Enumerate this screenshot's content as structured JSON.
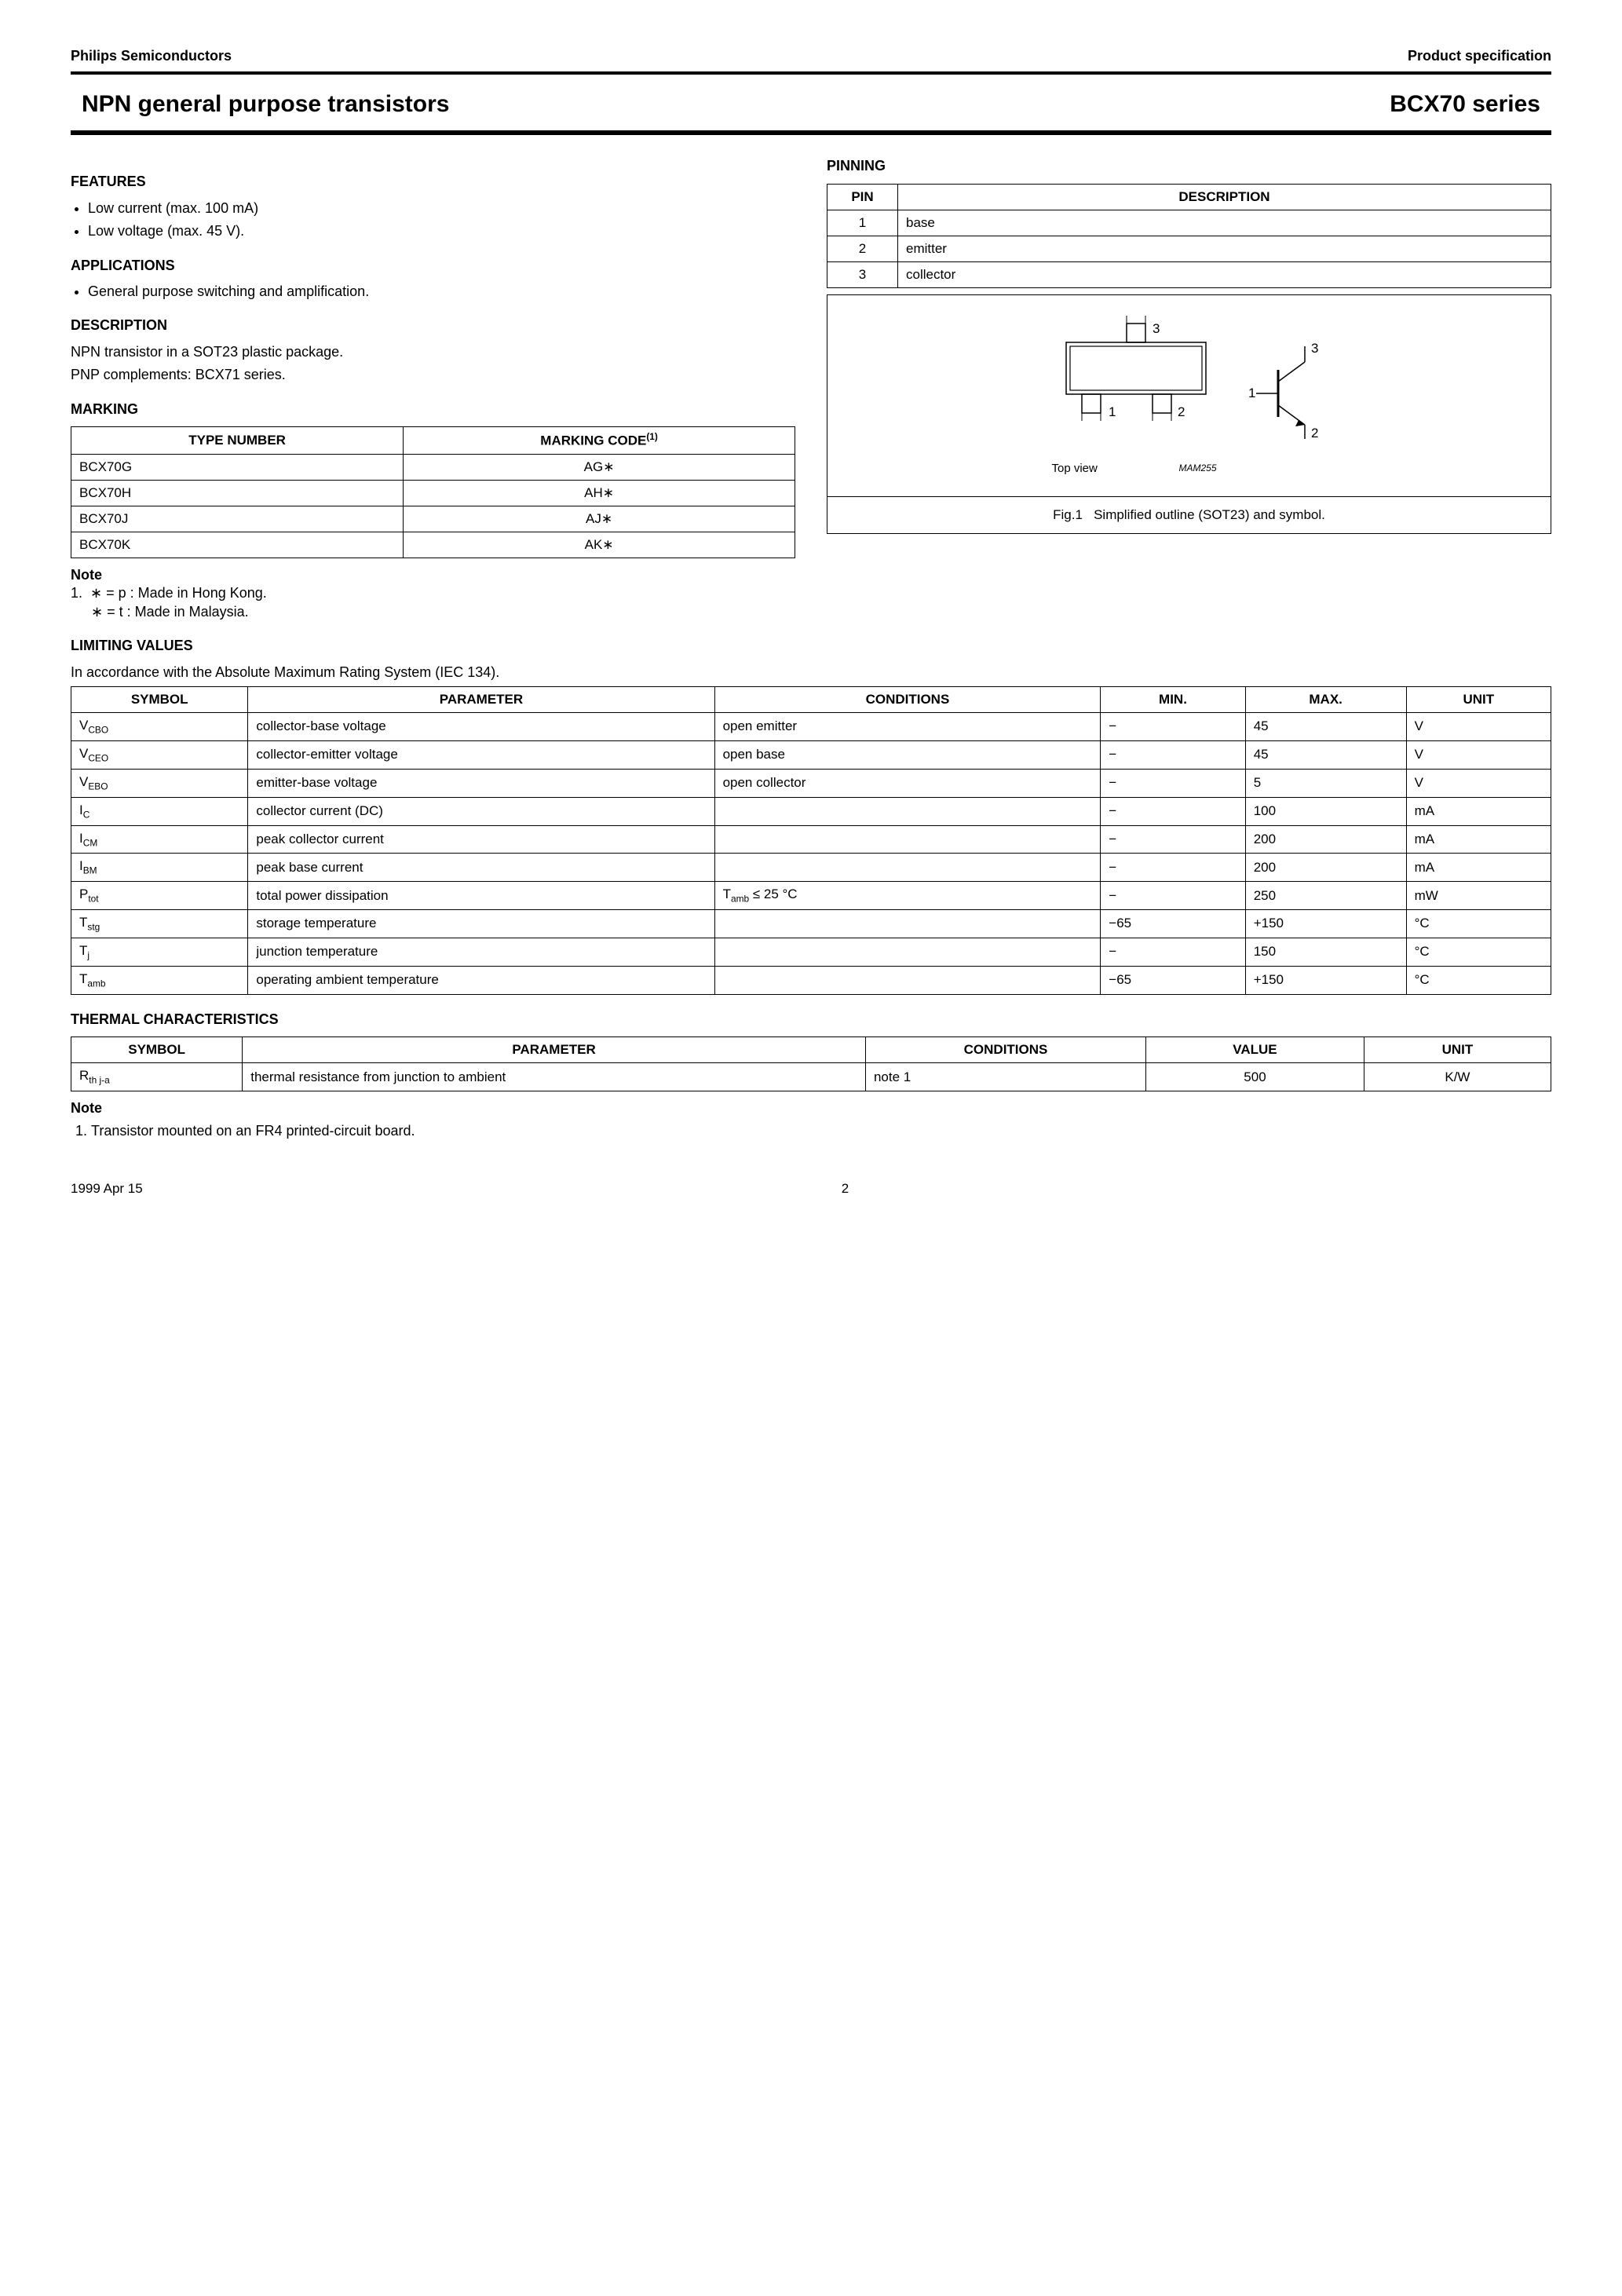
{
  "header": {
    "left": "Philips Semiconductors",
    "right": "Product specification"
  },
  "title": {
    "left": "NPN general purpose transistors",
    "right": "BCX70 series"
  },
  "features": {
    "heading": "FEATURES",
    "items": [
      "Low current (max. 100 mA)",
      "Low voltage (max. 45 V)."
    ]
  },
  "applications": {
    "heading": "APPLICATIONS",
    "items": [
      "General purpose switching and amplification."
    ]
  },
  "description": {
    "heading": "DESCRIPTION",
    "line1": "NPN transistor in a SOT23 plastic package.",
    "line2": "PNP complements: BCX71 series."
  },
  "marking": {
    "heading": "MARKING",
    "columns": [
      "TYPE NUMBER",
      "MARKING CODE"
    ],
    "col2_sup": "(1)",
    "rows": [
      [
        "BCX70G",
        "AG∗"
      ],
      [
        "BCX70H",
        "AH∗"
      ],
      [
        "BCX70J",
        "AJ∗"
      ],
      [
        "BCX70K",
        "AK∗"
      ]
    ],
    "note_head": "Note",
    "note_num": "1.",
    "note_a": "∗ = p : Made in Hong Kong.",
    "note_b": "∗ = t : Made in Malaysia."
  },
  "pinning": {
    "heading": "PINNING",
    "columns": [
      "PIN",
      "DESCRIPTION"
    ],
    "rows": [
      [
        "1",
        "base"
      ],
      [
        "2",
        "emitter"
      ],
      [
        "3",
        "collector"
      ]
    ]
  },
  "figure": {
    "pins": {
      "p1": "1",
      "p2": "2",
      "p3": "3"
    },
    "sym": {
      "t1": "1",
      "t2": "2",
      "t3": "3"
    },
    "top_view": "Top view",
    "code": "MAM255",
    "caption_prefix": "Fig.1",
    "caption": "Simplified outline (SOT23) and symbol."
  },
  "limiting": {
    "heading": "LIMITING VALUES",
    "intro": "In accordance with the Absolute Maximum Rating System (IEC 134).",
    "columns": [
      "SYMBOL",
      "PARAMETER",
      "CONDITIONS",
      "MIN.",
      "MAX.",
      "UNIT"
    ],
    "rows": [
      {
        "sym": "V",
        "sub": "CBO",
        "param": "collector-base voltage",
        "cond": "open emitter",
        "min": "−",
        "max": "45",
        "unit": "V"
      },
      {
        "sym": "V",
        "sub": "CEO",
        "param": "collector-emitter voltage",
        "cond": "open base",
        "min": "−",
        "max": "45",
        "unit": "V"
      },
      {
        "sym": "V",
        "sub": "EBO",
        "param": "emitter-base voltage",
        "cond": "open collector",
        "min": "−",
        "max": "5",
        "unit": "V"
      },
      {
        "sym": "I",
        "sub": "C",
        "param": "collector current (DC)",
        "cond": "",
        "min": "−",
        "max": "100",
        "unit": "mA"
      },
      {
        "sym": "I",
        "sub": "CM",
        "param": "peak collector current",
        "cond": "",
        "min": "−",
        "max": "200",
        "unit": "mA"
      },
      {
        "sym": "I",
        "sub": "BM",
        "param": "peak base current",
        "cond": "",
        "min": "−",
        "max": "200",
        "unit": "mA"
      },
      {
        "sym": "P",
        "sub": "tot",
        "param": "total power dissipation",
        "cond_sym": "T",
        "cond_sub": "amb",
        "cond_rest": " ≤ 25 °C",
        "min": "−",
        "max": "250",
        "unit": "mW"
      },
      {
        "sym": "T",
        "sub": "stg",
        "param": "storage temperature",
        "cond": "",
        "min": "−65",
        "max": "+150",
        "unit": "°C"
      },
      {
        "sym": "T",
        "sub": "j",
        "param": "junction temperature",
        "cond": "",
        "min": "−",
        "max": "150",
        "unit": "°C"
      },
      {
        "sym": "T",
        "sub": "amb",
        "param": "operating ambient temperature",
        "cond": "",
        "min": "−65",
        "max": "+150",
        "unit": "°C"
      }
    ]
  },
  "thermal": {
    "heading": "THERMAL CHARACTERISTICS",
    "columns": [
      "SYMBOL",
      "PARAMETER",
      "CONDITIONS",
      "VALUE",
      "UNIT"
    ],
    "row": {
      "sym": "R",
      "sub": "th j-a",
      "param": "thermal resistance from junction to ambient",
      "cond": "note 1",
      "value": "500",
      "unit": "K/W"
    },
    "note_head": "Note",
    "note_text": "Transistor mounted on an FR4 printed-circuit board."
  },
  "footer": {
    "date": "1999 Apr 15",
    "page": "2"
  }
}
